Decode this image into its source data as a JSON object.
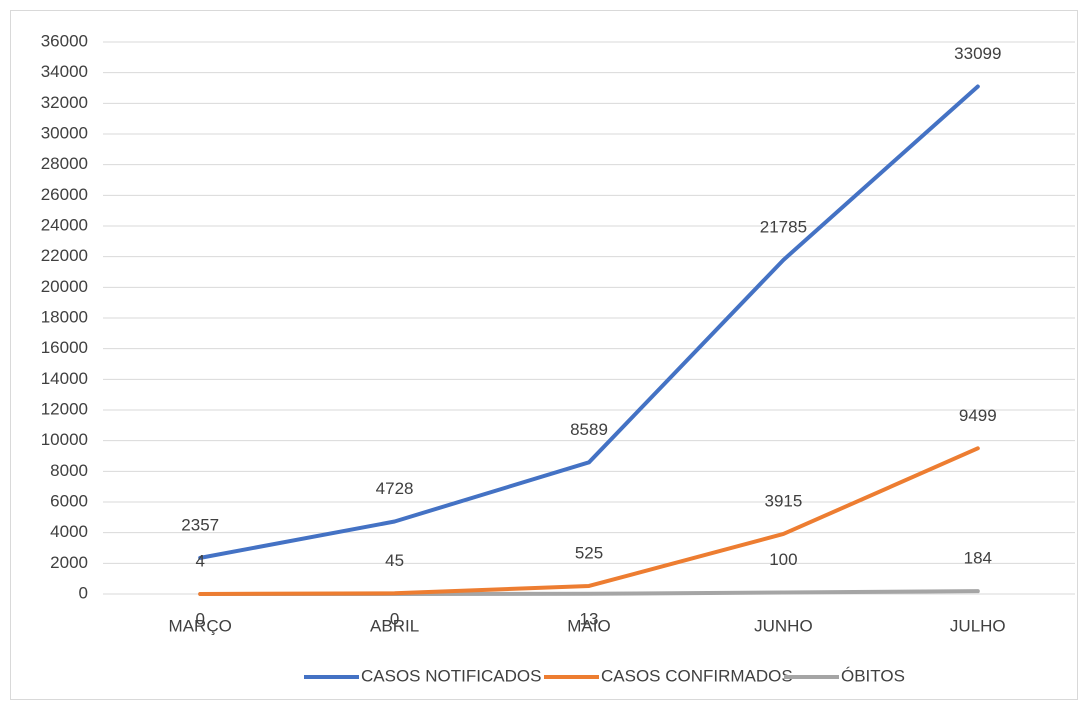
{
  "chart_data": {
    "type": "line",
    "categories": [
      "MARÇO",
      "ABRIL",
      "MAIO",
      "JUNHO",
      "JULHO"
    ],
    "series": [
      {
        "name": "CASOS NOTIFICADOS",
        "color": "#4472c4",
        "values": [
          2357,
          4728,
          8589,
          21785,
          33099
        ]
      },
      {
        "name": "CASOS CONFIRMADOS",
        "color": "#ed7d31",
        "values": [
          4,
          45,
          525,
          3915,
          9499
        ]
      },
      {
        "name": "ÓBITOS",
        "color": "#a5a5a5",
        "values": [
          0,
          0,
          13,
          100,
          184
        ]
      }
    ],
    "ylim": [
      0,
      36000
    ],
    "yticks": [
      0,
      2000,
      4000,
      6000,
      8000,
      10000,
      12000,
      14000,
      16000,
      18000,
      20000,
      22000,
      24000,
      26000,
      28000,
      30000,
      32000,
      34000,
      36000
    ],
    "grid": true,
    "legend": "bottom"
  }
}
